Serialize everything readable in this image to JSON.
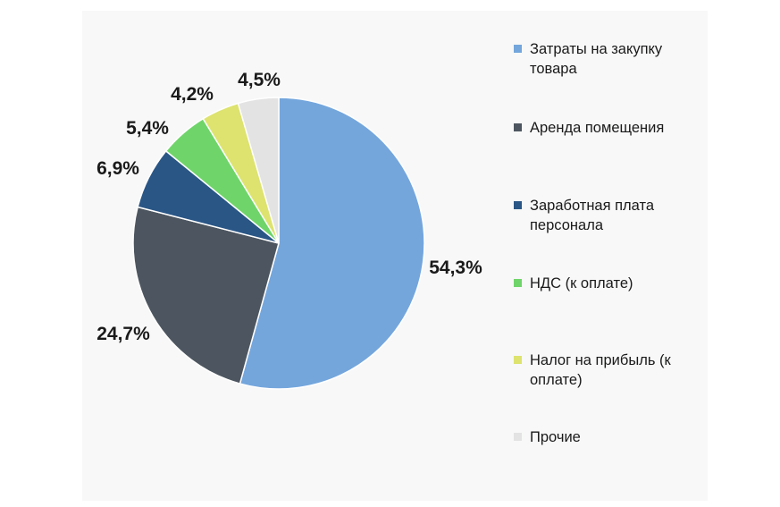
{
  "chart_data": {
    "type": "pie",
    "title": "",
    "categories": [
      "Затраты на закупку товара",
      "Аренда помещения",
      "Заработная плата персонала",
      "НДС (к оплате)",
      "Налог на прибыль (к оплате)",
      "Прочие"
    ],
    "values": [
      54.3,
      24.7,
      6.9,
      5.4,
      4.2,
      4.5
    ],
    "value_labels": [
      "54,3%",
      "24,7%",
      "6,9%",
      "5,4%",
      "4,2%",
      "4,5%"
    ],
    "colors": [
      "#74a6dc",
      "#4d5660",
      "#2a5686",
      "#6fd56a",
      "#dde36e",
      "#e3e3e3"
    ],
    "start_angle_deg": 0,
    "direction": "clockwise",
    "legend_position": "right"
  },
  "legend": {
    "items": [
      {
        "label": "Затраты на закупку товара",
        "color": "#74a6dc"
      },
      {
        "label": "Аренда помещения",
        "color": "#4d5660"
      },
      {
        "label": "Заработная плата персонала",
        "color": "#2a5686"
      },
      {
        "label": "НДС (к оплате)",
        "color": "#6fd56a"
      },
      {
        "label": "Налог на прибыль (к оплате)",
        "color": "#dde36e"
      },
      {
        "label": "Прочие",
        "color": "#e3e3e3"
      }
    ]
  }
}
